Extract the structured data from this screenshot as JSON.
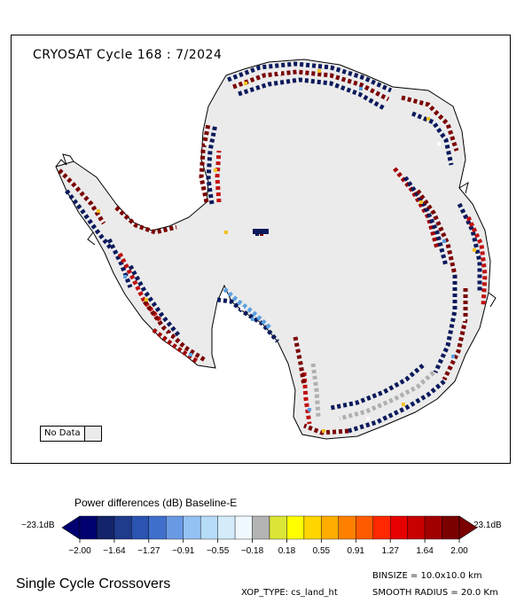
{
  "map": {
    "title": "CRYOSAT Cycle 168 : 7/2024",
    "no_data_label": "No Data",
    "no_data_color": "#ebebeb",
    "land_color": "#ebebeb",
    "coast_color": "#000000",
    "track_colors": [
      "#0a1a5c",
      "#7a0000",
      "#a00000",
      "#c01010",
      "#ffffff",
      "#0a1a5c",
      "#8a0000",
      "#1a2a6e",
      "#b0b0b0",
      "#f0c020",
      "#5aa0e0"
    ],
    "icon": "antarctica-map"
  },
  "legend": {
    "title": "Power differences (dB) Baseline-E",
    "min_label": "−23.1dB",
    "max_label": "23.1dB",
    "colors": [
      "#000070",
      "#14246a",
      "#203a8c",
      "#2a54b0",
      "#4070cc",
      "#6a9ae4",
      "#94c2f2",
      "#b6dcf8",
      "#d4ecfa",
      "#f0f8ff",
      "#b4b4b4",
      "#dce636",
      "#ffff00",
      "#ffd600",
      "#ffae00",
      "#ff8000",
      "#ff5a00",
      "#ff2800",
      "#e60000",
      "#c80000",
      "#a00000",
      "#7a0000"
    ],
    "tick_labels": [
      "−2.00",
      "−1.64",
      "−1.27",
      "−0.91",
      "−0.55",
      "−0.18",
      "0.18",
      "0.55",
      "0.91",
      "1.27",
      "1.64",
      "2.00"
    ]
  },
  "footer": {
    "left": "Single Cycle Crossovers",
    "xop": "XOP_TYPE: cs_land_ht",
    "binsize": "BINSIZE = 10.0x10.0 km",
    "smooth": "SMOOTH RADIUS =  20.0 Km"
  }
}
